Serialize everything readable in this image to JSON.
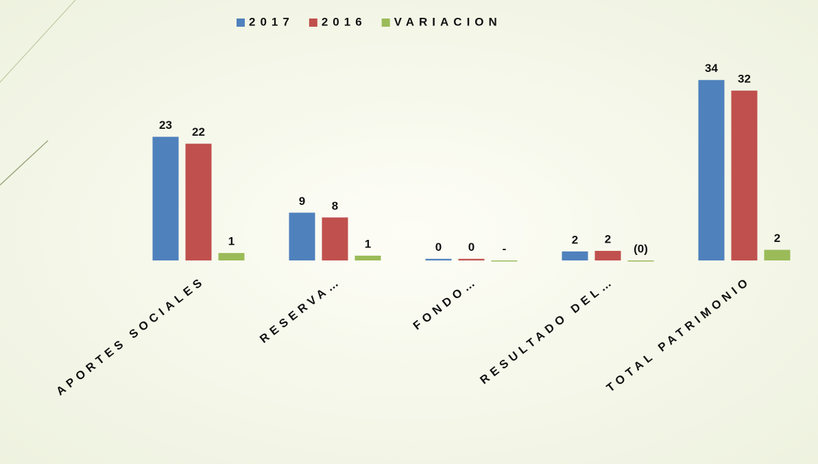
{
  "chart_data": {
    "type": "bar",
    "categories": [
      "APORTES SOCIALES",
      "RESERVA…",
      "FONDO…",
      "RESULTADO DEL…",
      "TOTAL PATRIMONIO"
    ],
    "series": [
      {
        "name": "2017",
        "color": "#4f81bd",
        "values": [
          23.3,
          9,
          0.3,
          1.7,
          34
        ],
        "value_labels": [
          "23",
          "9",
          "0",
          "2",
          "34"
        ]
      },
      {
        "name": "2016",
        "color": "#c0504d",
        "values": [
          22,
          8.1,
          0.3,
          1.8,
          32
        ],
        "value_labels": [
          "22",
          "8",
          "0",
          "2",
          "32"
        ]
      },
      {
        "name": "VARIACION",
        "color": "#9bbb59",
        "values": [
          1.4,
          0.9,
          0,
          -0.2,
          2
        ],
        "value_labels": [
          "1",
          "1",
          "-",
          "(0)",
          "2"
        ]
      }
    ],
    "ylim": [
      0,
      35
    ],
    "legend": "top"
  }
}
